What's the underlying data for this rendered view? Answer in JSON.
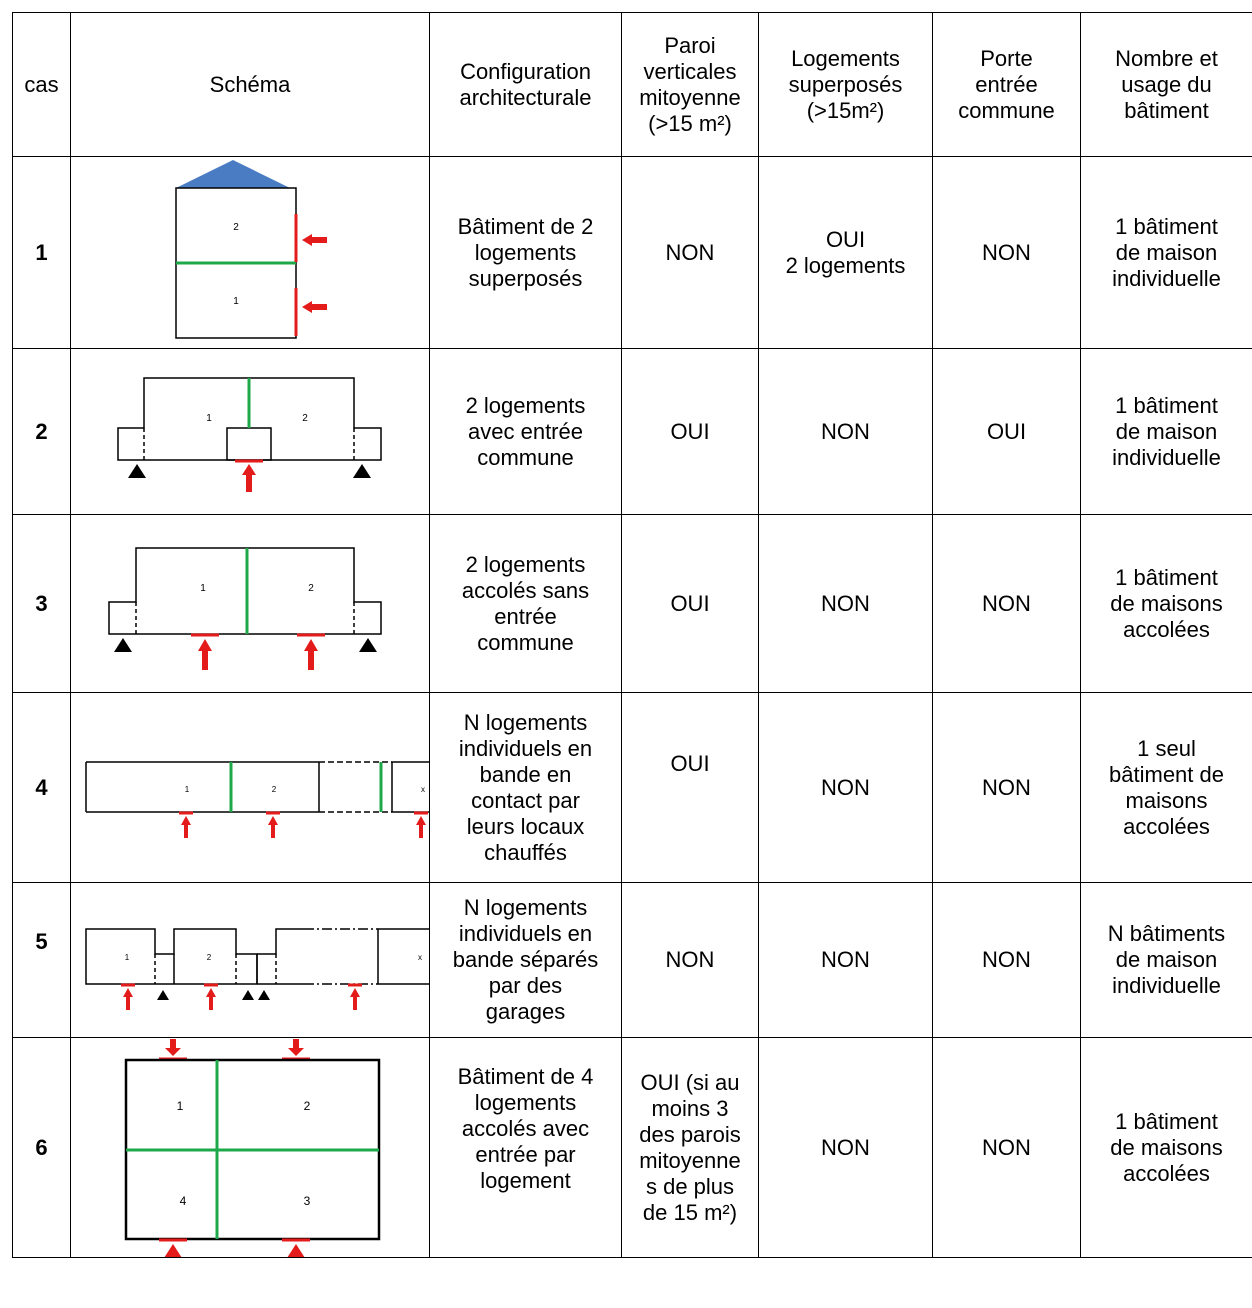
{
  "headers": {
    "cas": "cas",
    "schema": "Schéma",
    "config": "Configuration\narchitecturale",
    "paroi": "Paroi\nverticales\nmitoyenne\n(>15 m²)",
    "superposes": "Logements\nsuperposés\n(>15m²)",
    "porte": "Porte\nentrée\ncommune",
    "nombre": "Nombre et\nusage du\nbâtiment"
  },
  "rows": [
    {
      "cas": "1",
      "schema_labels": [
        "2",
        "1"
      ],
      "config": "Bâtiment de 2\nlogements\nsuperposés",
      "paroi": "NON",
      "superposes": "OUI\n2 logements",
      "porte": "NON",
      "nombre": "1 bâtiment\nde maison\nindividuelle"
    },
    {
      "cas": "2",
      "schema_labels": [
        "1",
        "2"
      ],
      "config": "2 logements\navec entrée\ncommune",
      "paroi": "OUI",
      "superposes": "NON",
      "porte": "OUI",
      "nombre": "1 bâtiment\nde maison\nindividuelle"
    },
    {
      "cas": "3",
      "schema_labels": [
        "1",
        "2"
      ],
      "config": "2 logements\naccolés sans\nentrée\ncommune",
      "paroi": "OUI",
      "superposes": "NON",
      "porte": "NON",
      "nombre": "1 bâtiment\nde maisons\naccolées"
    },
    {
      "cas": "4",
      "schema_labels": [
        "1",
        "2",
        "x"
      ],
      "config": "N logements\nindividuels en\nbande en\ncontact par\nleurs locaux\nchauffés",
      "paroi": "OUI",
      "superposes": "NON",
      "porte": "NON",
      "nombre": "1 seul\nbâtiment de\nmaisons\naccolées"
    },
    {
      "cas": "5",
      "schema_labels": [
        "1",
        "2",
        "x"
      ],
      "config": "N logements\nindividuels en\nbande séparés\npar des\ngarages",
      "paroi": "NON",
      "superposes": "NON",
      "porte": "NON",
      "nombre": "N bâtiments\nde maison\nindividuelle"
    },
    {
      "cas": "6",
      "schema_labels": [
        "1",
        "2",
        "4",
        "3"
      ],
      "config": "Bâtiment de 4\nlogements\naccolés avec\nentrée par\nlogement",
      "paroi": "OUI (si au\nmoins 3\ndes parois\nmitoyenne\ns de plus\nde 15 m²)",
      "superposes": "NON",
      "porte": "NON",
      "nombre": "1 bâtiment\nde maisons\naccolées"
    }
  ],
  "colors": {
    "roof": "#4a7cc4",
    "arrow": "#e41b1b",
    "party_wall": "#1ea84a",
    "line": "#000000"
  }
}
